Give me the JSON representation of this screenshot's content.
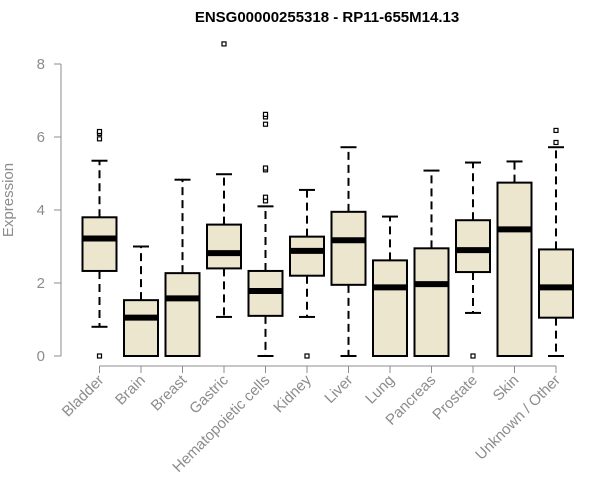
{
  "chart_data": {
    "type": "boxplot",
    "title": "ENSG00000255318 - RP11-655M14.13",
    "xlabel": "",
    "ylabel": "Expression",
    "ylim": [
      0,
      8
    ],
    "yticks": [
      0,
      2,
      4,
      6,
      8
    ],
    "grid": false,
    "legend": "none",
    "categories": [
      "Bladder",
      "Brain",
      "Breast",
      "Gastric",
      "Hematopoietic cells",
      "Kidney",
      "Liver",
      "Lung",
      "Pancreas",
      "Prostate",
      "Skin",
      "Unknown / Other"
    ],
    "boxes": [
      {
        "whisker_low": 0.8,
        "q1": 2.33,
        "median": 3.22,
        "q3": 3.8,
        "whisker_high": 5.35,
        "outliers": [
          0,
          5.95,
          6.1,
          6.15
        ]
      },
      {
        "whisker_low": 0,
        "q1": 0,
        "median": 1.05,
        "q3": 1.53,
        "whisker_high": 3.0,
        "outliers": []
      },
      {
        "whisker_low": 0,
        "q1": 0,
        "median": 1.58,
        "q3": 2.27,
        "whisker_high": 4.83,
        "outliers": []
      },
      {
        "whisker_low": 1.07,
        "q1": 2.4,
        "median": 2.82,
        "q3": 3.6,
        "whisker_high": 4.98,
        "outliers": [
          8.55
        ]
      },
      {
        "whisker_low": 0,
        "q1": 1.1,
        "median": 1.78,
        "q3": 2.33,
        "whisker_high": 4.1,
        "outliers": [
          4.25,
          4.35,
          5.1,
          5.15,
          6.35,
          6.55,
          6.62
        ]
      },
      {
        "whisker_low": 1.07,
        "q1": 2.2,
        "median": 2.88,
        "q3": 3.27,
        "whisker_high": 4.55,
        "outliers": [
          0
        ]
      },
      {
        "whisker_low": 0,
        "q1": 1.95,
        "median": 3.17,
        "q3": 3.95,
        "whisker_high": 5.72,
        "outliers": []
      },
      {
        "whisker_low": 0,
        "q1": 0,
        "median": 1.88,
        "q3": 2.62,
        "whisker_high": 3.82,
        "outliers": []
      },
      {
        "whisker_low": 0,
        "q1": 0,
        "median": 1.97,
        "q3": 2.95,
        "whisker_high": 5.08,
        "outliers": []
      },
      {
        "whisker_low": 1.18,
        "q1": 2.3,
        "median": 2.9,
        "q3": 3.72,
        "whisker_high": 5.3,
        "outliers": [
          0
        ]
      },
      {
        "whisker_low": 0,
        "q1": 0,
        "median": 3.47,
        "q3": 4.75,
        "whisker_high": 5.33,
        "outliers": []
      },
      {
        "whisker_low": 0,
        "q1": 1.05,
        "median": 1.88,
        "q3": 2.92,
        "whisker_high": 5.72,
        "outliers": [
          5.85,
          6.18
        ]
      }
    ],
    "colors": {
      "box_fill": "#ede6cf",
      "box_stroke": "#000000",
      "median": "#000000",
      "axis": "#8c8c8c",
      "tick_text": "#8c8c8c",
      "title": "#000000"
    }
  }
}
